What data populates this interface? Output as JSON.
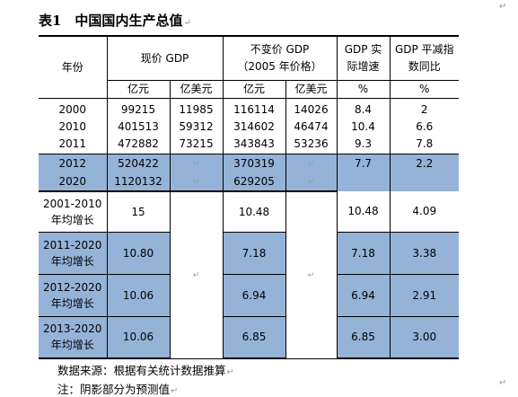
{
  "title": "表1　中国国内生产总值",
  "header": {
    "year": "年份",
    "current_price": "现价 GDP",
    "constant_price_line1": "不变价 GDP",
    "constant_price_line2": "（2005 年价格）",
    "real_growth_line1": "GDP 实",
    "real_growth_line2": "际增速",
    "deflator_line1": "GDP 平减指",
    "deflator_line2": "数同比",
    "units": {
      "cny_current": "亿元",
      "usd_current": "亿美元",
      "cny_constant": "亿元",
      "usd_constant": "亿美元",
      "growth": "%",
      "deflator": "%"
    }
  },
  "rows": [
    {
      "year": "2000",
      "cny": "99215",
      "usd": "11985",
      "c_cny": "116114",
      "c_usd": "14026",
      "growth": "8.4",
      "deflator": "2"
    },
    {
      "year": "2010",
      "cny": "401513",
      "usd": "59312",
      "c_cny": "314602",
      "c_usd": "46474",
      "growth": "10.4",
      "deflator": "6.6"
    },
    {
      "year": "2011",
      "cny": "472882",
      "usd": "73215",
      "c_cny": "343843",
      "c_usd": "53236",
      "growth": "9.3",
      "deflator": "7.8"
    },
    {
      "year": "2012",
      "cny": "520422",
      "usd": "",
      "c_cny": "370319",
      "c_usd": "",
      "growth": "7.7",
      "deflator": "2.2"
    },
    {
      "year": "2020",
      "cny": "1120132",
      "usd": "",
      "c_cny": "629205",
      "c_usd": "",
      "growth": "",
      "deflator": ""
    }
  ],
  "avg_rows": [
    {
      "period_line1": "2001-2010",
      "period_line2": "年均增长",
      "cny": "15",
      "c_cny": "10.48",
      "growth": "10.48",
      "deflator": "4.09"
    },
    {
      "period_line1": "2011-2020",
      "period_line2": "年均增长",
      "cny": "10.80",
      "c_cny": "7.18",
      "growth": "7.18",
      "deflator": "3.38"
    },
    {
      "period_line1": "2012-2020",
      "period_line2": "年均增长",
      "cny": "10.06",
      "c_cny": "6.94",
      "growth": "6.94",
      "deflator": "2.91"
    },
    {
      "period_line1": "2013-2020",
      "period_line2": "年均增长",
      "cny": "10.06",
      "c_cny": "6.85",
      "growth": "6.85",
      "deflator": "3.00"
    }
  ],
  "notes": {
    "source": "数据来源：根据有关统计数据推算",
    "shading": "注：阴影部分为预测值"
  },
  "colors": {
    "shade": "#95b3d7",
    "mark": "#9a9a9a"
  },
  "icons": {
    "cell_end_marker": "↵"
  }
}
